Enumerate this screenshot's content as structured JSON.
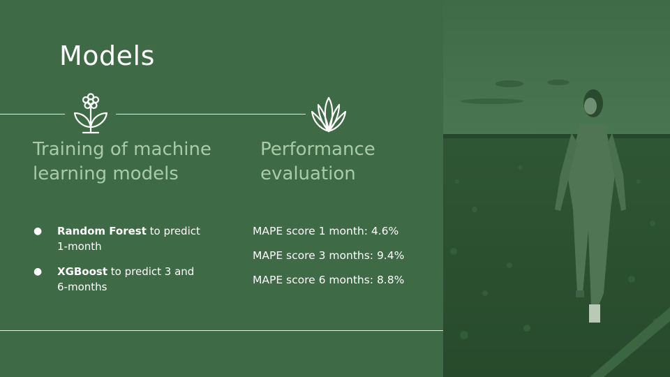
{
  "slide": {
    "title": "Models",
    "columns": [
      {
        "icon": "flower-icon",
        "heading_line1": "Training of machine",
        "heading_line2": "learning models"
      },
      {
        "icon": "plant-sprout-icon",
        "heading_line1": "Performance",
        "heading_line2": "evaluation"
      }
    ],
    "bullets": [
      {
        "bold": "Random Forest",
        "rest": " to predict",
        "line2": "1-month"
      },
      {
        "bold": "XGBoost",
        "rest": " to predict 3 and",
        "line2": "6-months"
      }
    ],
    "metrics": [
      "MAPE score 1 month: 4.6%",
      "MAPE score 3 months: 9.4%",
      "MAPE score 6 months: 8.8%"
    ],
    "bullet_glyph": "●"
  },
  "colors": {
    "background": "#3f6a46",
    "heading": "#a9cba6",
    "text": "#ffffff",
    "photo_tint": "#2f5a36"
  }
}
